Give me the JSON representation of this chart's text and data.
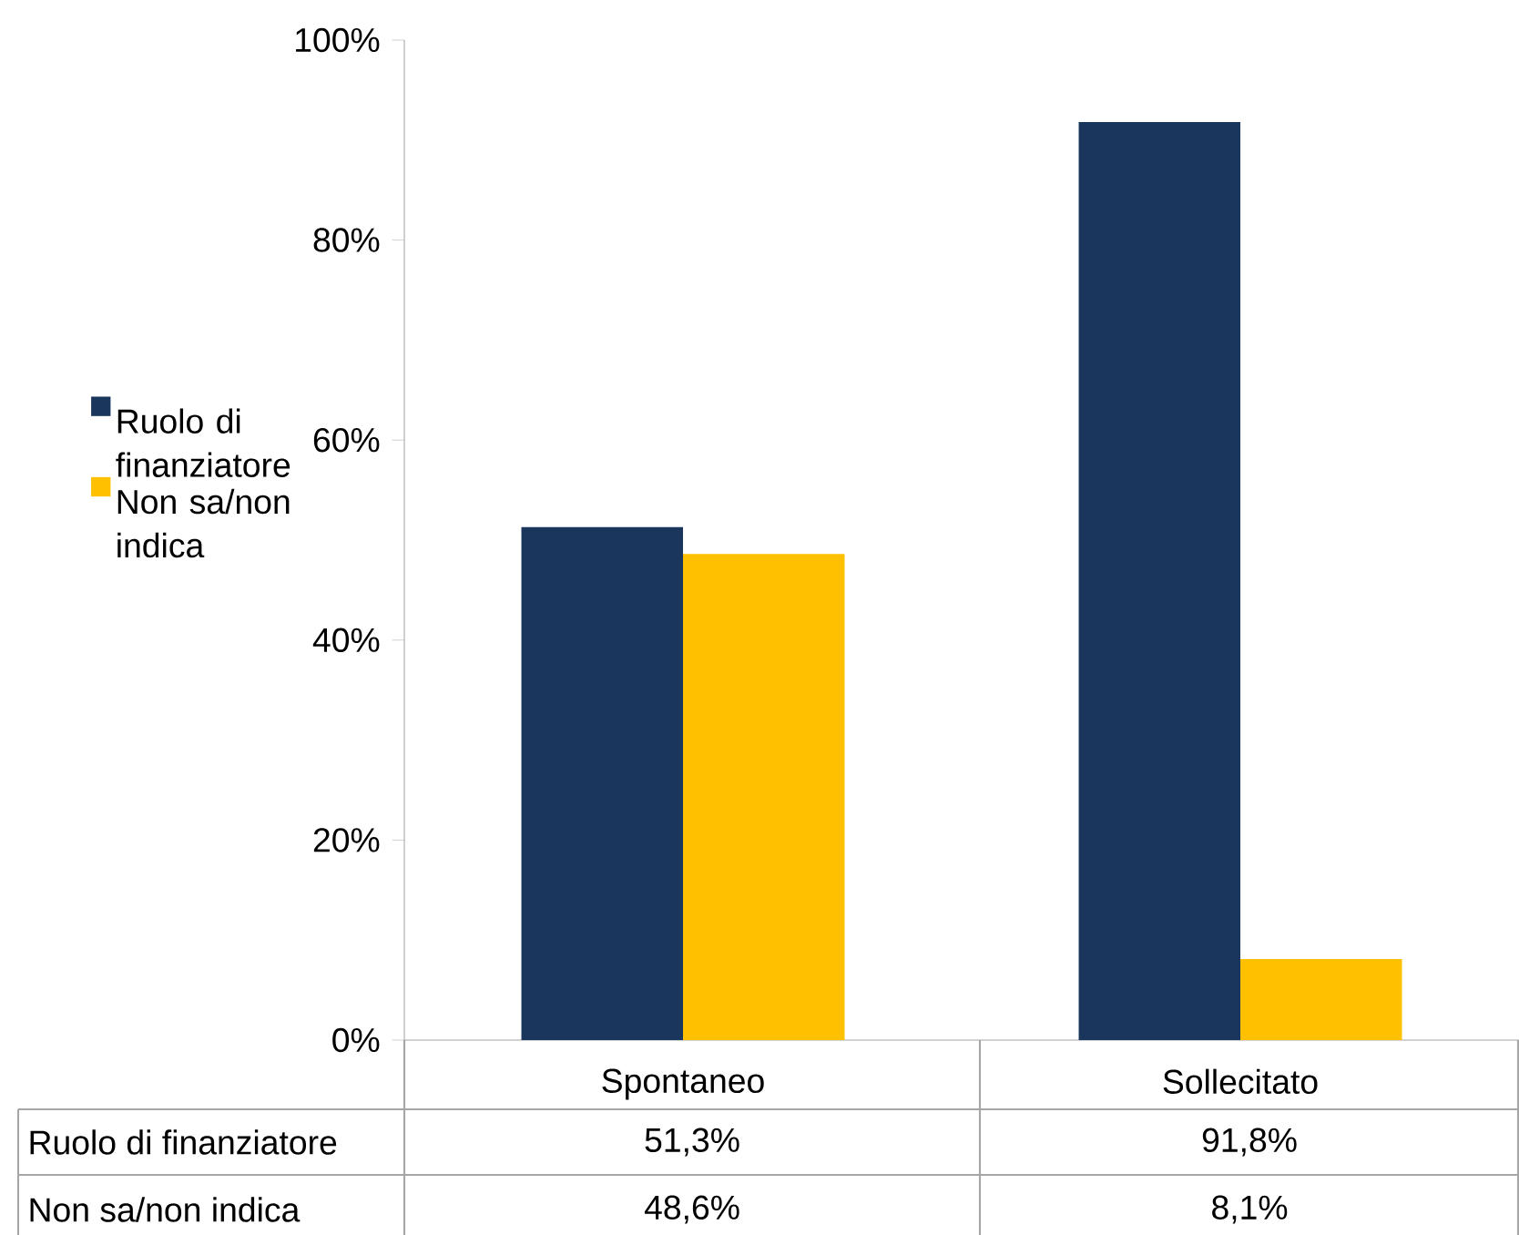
{
  "chart_data": {
    "type": "bar",
    "categories": [
      "Spontaneo",
      "Sollecitato"
    ],
    "series": [
      {
        "name": "Ruolo di finanziatore",
        "color": "#1b365d",
        "values": [
          51.3,
          91.8
        ],
        "value_labels": [
          "51,3%",
          "91,8%"
        ]
      },
      {
        "name": "Non sa/non indica",
        "color": "#ffc000",
        "values": [
          48.6,
          8.1
        ],
        "value_labels": [
          "48,6%",
          "8,1%"
        ]
      }
    ],
    "ylim": [
      0,
      100
    ],
    "yticks": [
      {
        "value": 0,
        "label": "0%"
      },
      {
        "value": 20,
        "label": "20%"
      },
      {
        "value": 40,
        "label": "40%"
      },
      {
        "value": 60,
        "label": "60%"
      },
      {
        "value": 80,
        "label": "80%"
      },
      {
        "value": 100,
        "label": "100%"
      }
    ],
    "grid": false,
    "legend": "left"
  }
}
